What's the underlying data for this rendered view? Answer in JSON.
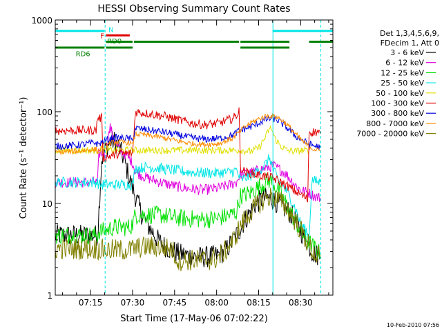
{
  "chart_data": {
    "type": "line",
    "title": "HESSI Observing Summary Count Rates",
    "xlabel": "Start Time (17-May-06 07:02:22)",
    "ylabel": "Count Rate (s⁻¹ detector⁻¹)",
    "x_unit": "minutes since 07:00",
    "xlim": [
      2.4,
      101.5
    ],
    "ylim": [
      1,
      1000
    ],
    "y_scale": "log",
    "x_ticks": [
      {
        "x": 15,
        "label": "07:15"
      },
      {
        "x": 30,
        "label": "07:30"
      },
      {
        "x": 45,
        "label": "07:45"
      },
      {
        "x": 60,
        "label": "08:00"
      },
      {
        "x": 75,
        "label": "08:15"
      },
      {
        "x": 90,
        "label": "08:30"
      }
    ],
    "y_ticks": [
      {
        "y": 1,
        "label": "1"
      },
      {
        "y": 10,
        "label": "10"
      },
      {
        "y": 100,
        "label": "100"
      },
      {
        "y": 1000,
        "label": "1000"
      }
    ],
    "legend_header": [
      "Det 1,3,4,5,6,9,",
      "FDecim 1, Att 0"
    ],
    "legend_position": "right",
    "timestamp": "10-Feb-2010 07:56",
    "flags": [
      {
        "label": "N",
        "color": "#00e5e5",
        "y": 760,
        "segments": [
          [
            2.4,
            20
          ],
          [
            80,
            101.5
          ]
        ]
      },
      {
        "label": "F",
        "color": "#e00000",
        "y": 680,
        "segments": [
          [
            20.5,
            29
          ]
        ]
      },
      {
        "label": "RD0",
        "color": "#008000",
        "y": 580,
        "segments": [
          [
            20.5,
            30
          ],
          [
            30.5,
            68
          ],
          [
            68.5,
            86
          ],
          [
            93,
            101.5
          ]
        ]
      },
      {
        "label": "RD6",
        "color": "#008000",
        "y": 500,
        "segments": [
          [
            2.4,
            20
          ],
          [
            20.5,
            30
          ],
          [
            68.5,
            86
          ]
        ]
      }
    ],
    "vlines": [
      {
        "x": 2.4,
        "color": "#00e5e5",
        "style": "solid"
      },
      {
        "x": 20.2,
        "color": "#00e5e5",
        "style": "dashed"
      },
      {
        "x": 80.1,
        "color": "#00e5e5",
        "style": "solid"
      },
      {
        "x": 97.2,
        "color": "#00e5e5",
        "style": "dashed"
      }
    ],
    "series": [
      {
        "name": "3 - 6 keV",
        "color": "#000000",
        "x": [
          2.4,
          17.5,
          19,
          20.5,
          22,
          23.5,
          25,
          27,
          29,
          31,
          33,
          35,
          37,
          39,
          41,
          43,
          45,
          47,
          50,
          53,
          56,
          60,
          63,
          66,
          68,
          70,
          72,
          74,
          76,
          78,
          80,
          82,
          84,
          86,
          88,
          90,
          92,
          94,
          97
        ],
        "values": [
          4.5,
          4.5,
          30,
          40,
          47,
          48,
          42,
          30,
          18,
          12,
          8,
          6,
          5,
          4,
          3.5,
          3.2,
          3,
          2.8,
          2.7,
          2.6,
          2.6,
          2.7,
          3,
          4,
          5,
          6.5,
          8,
          10,
          11,
          11.5,
          11,
          10,
          9,
          8,
          6.5,
          5,
          4,
          3,
          2.6
        ],
        "noise": 0.12
      },
      {
        "name": "6 - 12 keV",
        "color": "#e000e0",
        "x": [
          2.4,
          17.5,
          18,
          20.5,
          21,
          22,
          23,
          24,
          25,
          27,
          30,
          31,
          35,
          40,
          45,
          50,
          55,
          60,
          65,
          67,
          68.5,
          70,
          73,
          76,
          79,
          80,
          81,
          84,
          86,
          88,
          90,
          93,
          95,
          97
        ],
        "values": [
          17,
          17,
          35,
          35,
          48,
          67,
          55,
          45,
          40,
          35,
          28,
          22,
          19,
          17,
          15.5,
          14.5,
          14,
          14.5,
          16,
          17,
          21,
          21,
          22,
          23.5,
          25,
          26,
          25,
          22,
          19,
          16,
          14,
          13,
          12,
          11.5
        ],
        "noise": 0.06
      },
      {
        "name": "12 - 25 keV",
        "color": "#00e000",
        "x": [
          2.4,
          17.5,
          18,
          20,
          23,
          26,
          29,
          30,
          31,
          35,
          40,
          45,
          50,
          55,
          60,
          65,
          67,
          68.5,
          72,
          76,
          79,
          80,
          82,
          84,
          86,
          88,
          90,
          92,
          94,
          97
        ],
        "values": [
          4.5,
          4.5,
          5,
          5,
          5.5,
          5.5,
          5.5,
          6,
          7.5,
          7.5,
          7.5,
          7,
          6.8,
          6.7,
          6.8,
          7.5,
          8,
          12,
          13,
          16,
          18,
          17,
          14,
          11,
          8.5,
          6.5,
          5,
          4,
          3.5,
          2.8
        ],
        "noise": 0.1
      },
      {
        "name": "25 - 50 keV",
        "color": "#00e5e5",
        "x": [
          2.4,
          17.5,
          18,
          20,
          25,
          29,
          30,
          31,
          35,
          40,
          45,
          50,
          55,
          60,
          65,
          67,
          68.5,
          72,
          76,
          78,
          79,
          80,
          82,
          84,
          86,
          88,
          90,
          92,
          93,
          94,
          97
        ],
        "values": [
          17,
          17,
          16,
          16,
          16,
          16,
          16,
          24,
          25,
          24,
          23,
          22,
          21.5,
          21.5,
          22,
          23,
          18,
          20,
          24,
          28,
          32,
          24,
          18,
          15,
          12,
          9,
          6,
          5,
          4,
          18,
          17
        ],
        "noise": 0.06
      },
      {
        "name": "50 - 100 keV",
        "color": "#e0e000",
        "x": [
          2.4,
          17.5,
          20,
          29,
          30,
          68.5,
          72,
          75,
          77,
          78.5,
          79.5,
          80,
          81,
          83,
          85,
          88,
          91,
          93
        ],
        "values": [
          38,
          38,
          38,
          38,
          38,
          38,
          37,
          40,
          50,
          62,
          66,
          60,
          50,
          42,
          38,
          37,
          38,
          37
        ],
        "noise": 0.04
      },
      {
        "name": "100 - 300 keV",
        "color": "#e00000",
        "x": [
          2.4,
          17,
          17.5,
          19,
          19.5,
          25,
          29,
          30,
          31,
          36,
          41,
          46,
          51,
          56,
          61,
          66,
          67.5,
          68,
          68.5,
          70,
          73,
          76,
          78,
          80,
          83,
          86,
          89,
          91,
          92.5,
          93,
          96,
          97
        ],
        "values": [
          62,
          63,
          85,
          85,
          31,
          35,
          35,
          35,
          100,
          95,
          90,
          82,
          75,
          72,
          75,
          85,
          95,
          105,
          25,
          22,
          21,
          20,
          19.5,
          19,
          17,
          15,
          13,
          12,
          11,
          60,
          60,
          58
        ],
        "noise": 0.05
      },
      {
        "name": "300 - 800 keV",
        "color": "#0000e0",
        "x": [
          2.4,
          10,
          17,
          17.5,
          20,
          24,
          29,
          30,
          31,
          36,
          41,
          46,
          51,
          56,
          61,
          66,
          68,
          70,
          73,
          76,
          78,
          80,
          82,
          84,
          86,
          88,
          90,
          92,
          94,
          97
        ],
        "values": [
          42,
          43,
          46,
          44,
          48,
          52,
          51,
          48,
          66,
          63,
          60,
          56,
          52,
          50,
          51,
          56,
          62,
          65,
          70,
          78,
          83,
          85,
          80,
          72,
          63,
          55,
          50,
          46,
          43,
          41
        ],
        "noise": 0.04
      },
      {
        "name": "800 - 7000 keV",
        "color": "#ff8c00",
        "x": [
          2.4,
          10,
          17,
          17.5,
          20,
          24,
          29,
          30,
          31,
          36,
          41,
          46,
          51,
          56,
          61,
          66,
          68,
          70,
          73,
          76,
          78,
          80,
          82,
          84,
          86,
          88,
          90,
          92,
          94,
          97
        ],
        "values": [
          36,
          37,
          39,
          37,
          43,
          47,
          46,
          43,
          57,
          55,
          52,
          48,
          45,
          44,
          45,
          52,
          60,
          68,
          78,
          86,
          90,
          90,
          86,
          78,
          68,
          58,
          50,
          44,
          40,
          37
        ],
        "noise": 0.03
      },
      {
        "name": "7000 - 20000 keV",
        "color": "#808000",
        "x": [
          2.4,
          17.5,
          20,
          29,
          30,
          35,
          40,
          44,
          46,
          50,
          55,
          60,
          63,
          66,
          69,
          72,
          75,
          78,
          80,
          82,
          85,
          88,
          91,
          93,
          94,
          97
        ],
        "values": [
          3.2,
          3.2,
          3.1,
          3.1,
          3.2,
          3.4,
          3.3,
          3.2,
          2.4,
          2.4,
          2.4,
          2.5,
          3,
          4,
          6,
          8,
          10,
          11.5,
          12,
          11,
          9,
          6.5,
          4.5,
          3.5,
          3,
          2.5
        ],
        "noise": 0.12
      }
    ]
  }
}
